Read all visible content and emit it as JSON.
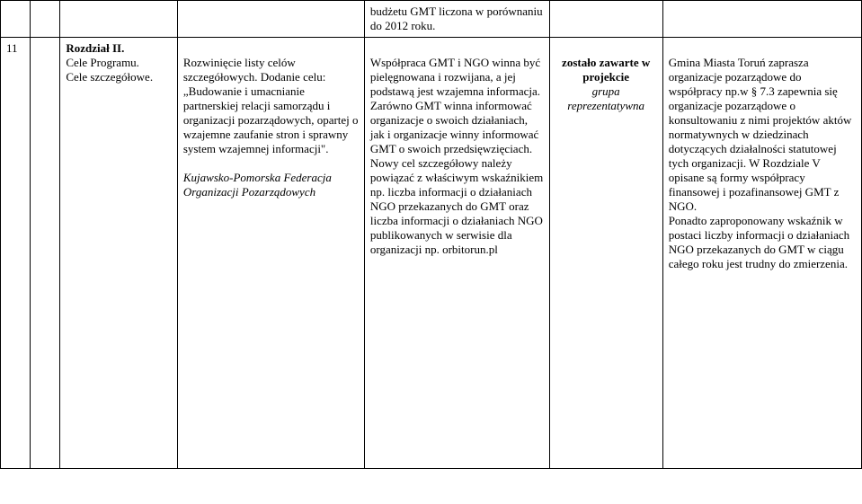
{
  "row1": {
    "c3": "budżetu GMT liczona w porównaniu do 2012 roku."
  },
  "row2": {
    "num": "11",
    "a_title": "Rozdział II.",
    "a_line1": "Cele Programu.",
    "a_line2": "Cele szczegółowe.",
    "b_p1": "Rozwinięcie listy celów szczegółowych. Dodanie celu:",
    "b_p2": "„Budowanie i umacnianie partnerskiej relacji samorządu i organizacji pozarządowych, opartej o wzajemne zaufanie stron i sprawny system wzajemnej informacji\".",
    "b_p3": "Kujawsko-Pomorska Federacja Organizacji Pozarządowych",
    "c_text": "Współpraca GMT i NGO winna być pielęgnowana i rozwijana, a jej podstawą jest wzajemna informacja. Zarówno GMT winna informować organizacje o swoich działaniach, jak i organizacje winny informować GMT o swoich przedsięwzięciach. Nowy cel szczegółowy należy powiązać z właściwym wskaźnikiem np. liczba informacji o działaniach NGO przekazanych do GMT oraz liczba informacji o działaniach NGO publikowanych w serwisie dla organizacji np. orbitorun.pl",
    "d_bold": "zostało zawarte w projekcie",
    "d_italic": "grupa reprezentatywna",
    "e_text": "Gmina Miasta Toruń zaprasza organizacje pozarządowe do współpracy np.w § 7.3 zapewnia się organizacje pozarządowe o konsultowaniu z nimi projektów aktów normatywnych w dziedzinach dotyczących działalności statutowej tych organizacji. W Rozdziale V opisane są formy współpracy finansowej i pozafinansowej GMT z NGO.",
    "e_text2": "Ponadto zaproponowany wskaźnik w postaci liczby informacji o działaniach NGO przekazanych do GMT w ciągu całego roku jest trudny do zmierzenia."
  }
}
